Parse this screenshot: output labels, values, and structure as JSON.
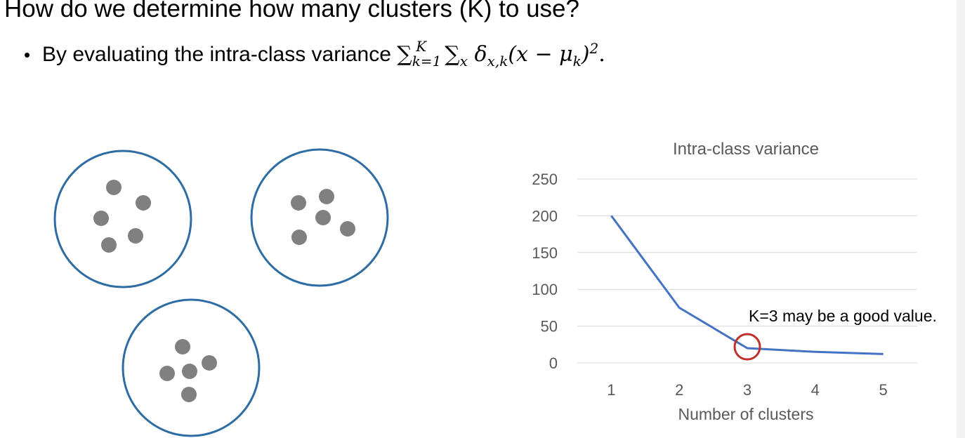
{
  "slide": {
    "heading": "How do we determine how many clusters (K) to use?",
    "bullet_symbol": "•",
    "bullet_text": "By evaluating the intra-class variance ",
    "formula": {
      "sum1": "∑",
      "sum1_sub": "k=1",
      "sum1_sup": "K",
      "sum2": "∑",
      "sum2_sub": "x",
      "delta": "δ",
      "delta_sub": "x,k",
      "open": "(x − ",
      "mu": "μ",
      "mu_sub": "k",
      "close": ")",
      "power": "2",
      "end": "."
    }
  },
  "illustration": {
    "circle_color": "#2e6ca4",
    "dot_color": "#808080",
    "clusters": 3,
    "points_per_cluster": 5
  },
  "chart_data": {
    "type": "line",
    "title": "Intra-class variance",
    "xlabel": "Number of clusters",
    "ylabel": "",
    "x": [
      1,
      2,
      3,
      4,
      5
    ],
    "y_ticks": [
      0,
      50,
      100,
      150,
      200,
      250
    ],
    "ylim": [
      0,
      250
    ],
    "grid": true,
    "line_color": "#4472c4",
    "series": [
      {
        "values": [
          200,
          75,
          20,
          15,
          12
        ]
      }
    ],
    "annotation": {
      "text": "K=3 may be a good value.",
      "x": 3,
      "y": 20,
      "circle_color": "#c0302b"
    }
  }
}
